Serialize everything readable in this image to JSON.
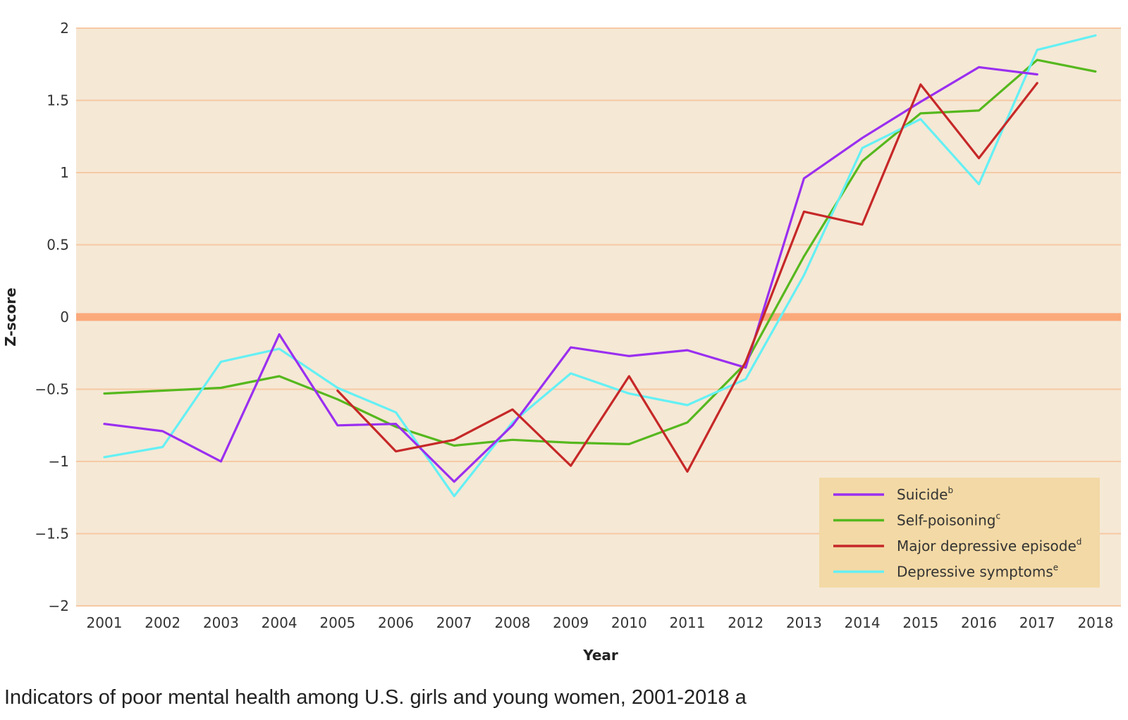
{
  "caption": "Indicators of poor mental health among U.S. girls and young women, 2001-2018 a",
  "chart_data": {
    "type": "line",
    "title": "",
    "xlabel": "Year",
    "ylabel": "Z-score",
    "ylim": [
      -2,
      2
    ],
    "y_ticks": [
      2,
      1.5,
      1,
      0.5,
      0,
      -0.5,
      -1,
      -1.5,
      -2
    ],
    "y_tick_labels": [
      "2",
      "1.5",
      "1",
      "0.5",
      "0",
      "−0.5",
      "−1",
      "−1.5",
      "−2"
    ],
    "categories": [
      "2001",
      "2002",
      "2003",
      "2004",
      "2005",
      "2006",
      "2007",
      "2008",
      "2009",
      "2010",
      "2011",
      "2012",
      "2013",
      "2014",
      "2015",
      "2016",
      "2017",
      "2018"
    ],
    "colors": {
      "plot_background": "#f5e8d5",
      "grid": "#f6c9a4",
      "zero_line": "#fba97b",
      "legend_background": "#f3d9a5"
    },
    "legend_position": "bottom-right",
    "series": [
      {
        "name": "Suicide",
        "sup": "b",
        "color": "#9a2ff0",
        "values": [
          -0.74,
          -0.79,
          -1.0,
          -0.12,
          -0.75,
          -0.74,
          -1.14,
          -0.75,
          -0.21,
          -0.27,
          -0.23,
          -0.35,
          0.96,
          1.24,
          1.49,
          1.73,
          1.68,
          null
        ]
      },
      {
        "name": "Self-poisoning",
        "sup": "c",
        "color": "#56b81e",
        "values": [
          -0.53,
          -0.51,
          -0.49,
          -0.41,
          -0.57,
          -0.76,
          -0.89,
          -0.85,
          -0.87,
          -0.88,
          -0.73,
          -0.32,
          0.42,
          1.08,
          1.41,
          1.43,
          1.78,
          1.7
        ]
      },
      {
        "name": "Major depressive episode",
        "sup": "d",
        "color": "#c62828",
        "values": [
          null,
          null,
          null,
          null,
          -0.51,
          -0.93,
          -0.85,
          -0.64,
          -1.03,
          -0.41,
          -1.07,
          -0.31,
          0.73,
          0.64,
          1.61,
          1.1,
          1.62,
          null
        ]
      },
      {
        "name": "Depressive symptoms",
        "sup": "e",
        "color": "#64f0f4",
        "values": [
          -0.97,
          -0.9,
          -0.31,
          -0.22,
          -0.49,
          -0.66,
          -1.24,
          -0.73,
          -0.39,
          -0.53,
          -0.61,
          -0.43,
          0.29,
          1.17,
          1.37,
          0.92,
          1.85,
          1.95
        ]
      }
    ]
  }
}
